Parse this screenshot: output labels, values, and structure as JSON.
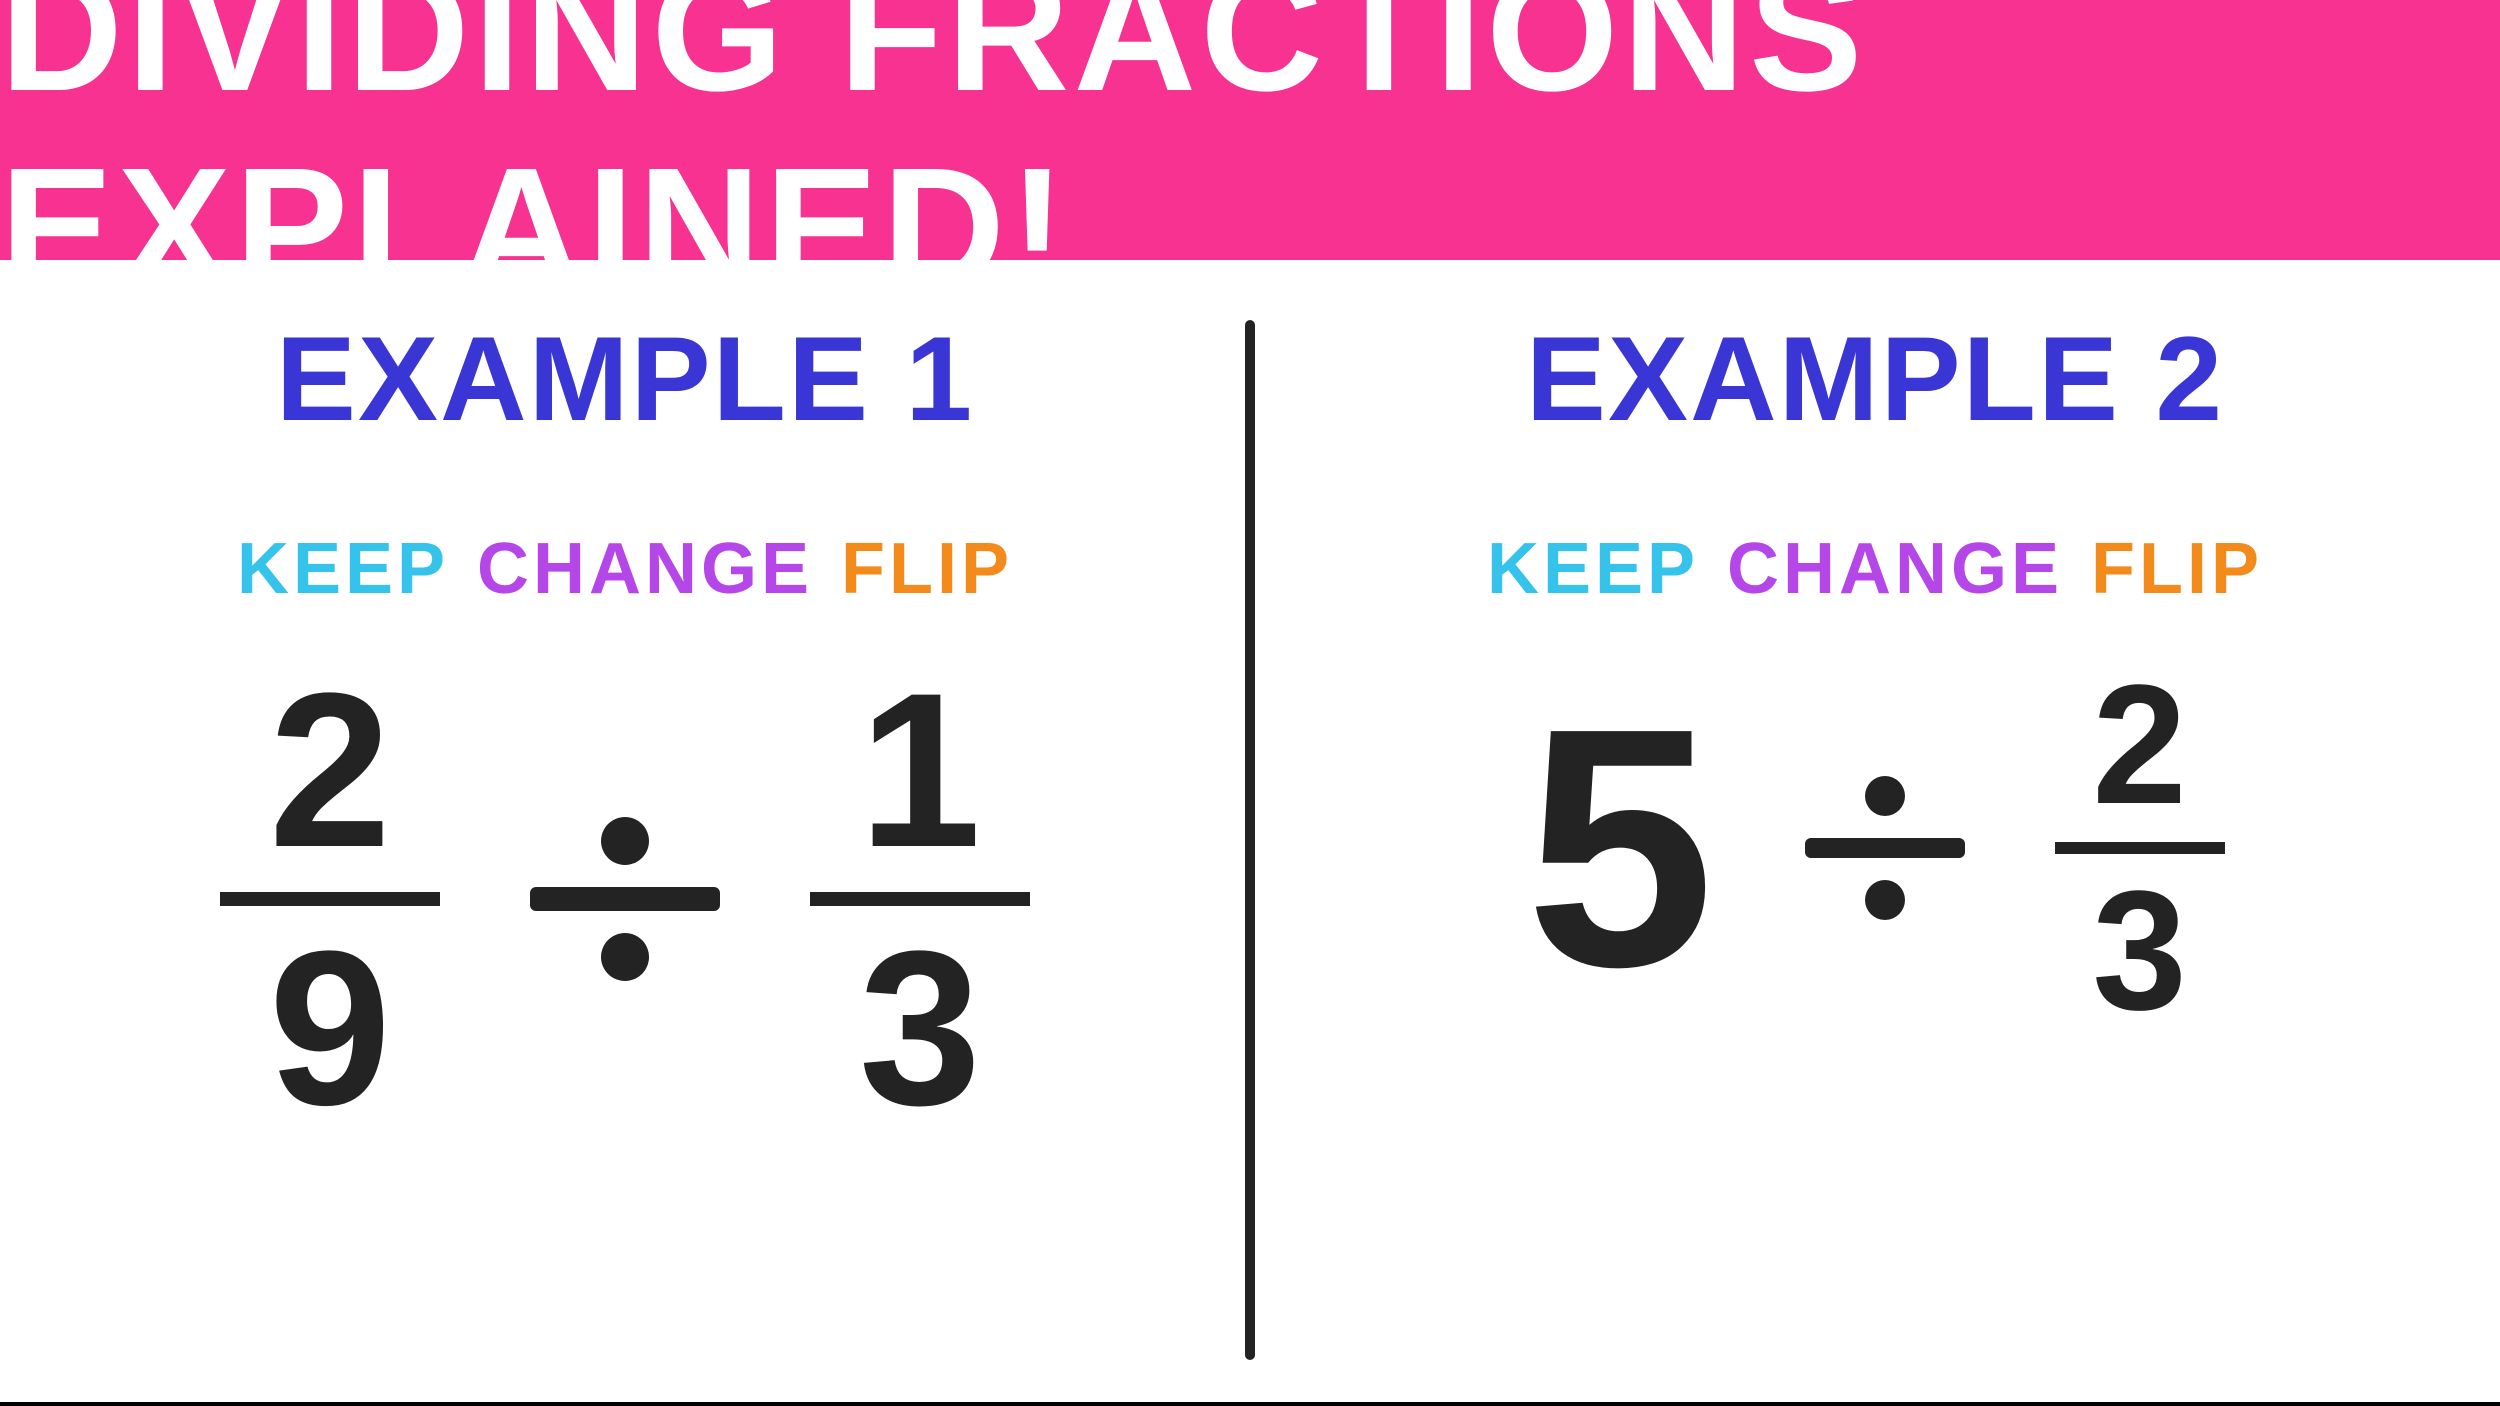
{
  "header": {
    "title": "DIVIDING FRACTIONS EXPLAINED!",
    "background_color": "#f73290",
    "text_color": "#ffffff"
  },
  "divider_color": "#232323",
  "examples": [
    {
      "title": "EXAMPLE 1",
      "title_color": "#3a36d6",
      "kcf": {
        "keep": "KEEP",
        "keep_color": "#35c3ec",
        "change": "CHANGE",
        "change_color": "#b547e8",
        "flip": "FLIP",
        "flip_color": "#f28a1c"
      },
      "equation": {
        "type": "fraction-fraction",
        "left": {
          "numerator": "2",
          "denominator": "9"
        },
        "right": {
          "numerator": "1",
          "denominator": "3"
        },
        "math_color": "#232323"
      }
    },
    {
      "title": "EXAMPLE 2",
      "title_color": "#3a36d6",
      "kcf": {
        "keep": "KEEP",
        "keep_color": "#35c3ec",
        "change": "CHANGE",
        "change_color": "#b547e8",
        "flip": "FLIP",
        "flip_color": "#f28a1c"
      },
      "equation": {
        "type": "whole-fraction",
        "left": {
          "whole": "5"
        },
        "right": {
          "numerator": "2",
          "denominator": "3"
        },
        "math_color": "#232323"
      }
    }
  ]
}
